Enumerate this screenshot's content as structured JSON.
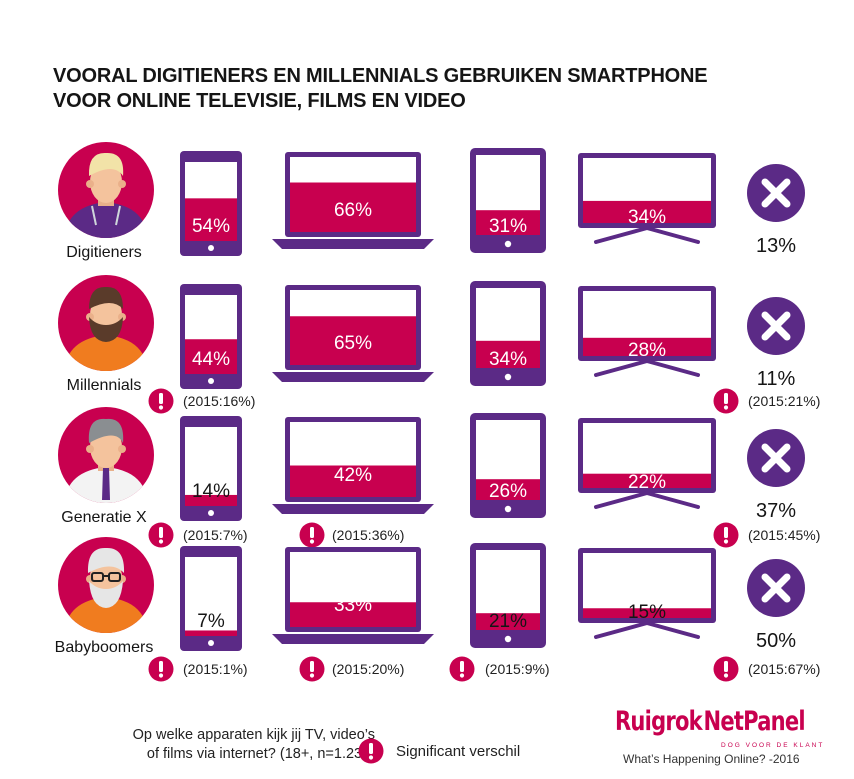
{
  "title": {
    "line1": "VOORAL DIGITIENERS EN MILLENNIALS GEBRUIKEN SMARTPHONE",
    "line2": "VOOR ONLINE TELEVISIE, FILMS EN VIDEO"
  },
  "colors": {
    "accent": "#c8004f",
    "device": "#5b2a86",
    "avatar_bg": "#c8004f"
  },
  "chart_data": {
    "type": "table",
    "columns": [
      "smartphone-icon",
      "laptop-icon",
      "tablet-icon",
      "tv-icon",
      "none-icon"
    ],
    "rows": [
      {
        "group": "Digitieners",
        "values": [
          54,
          66,
          31,
          34,
          13
        ],
        "labels": [
          "54%",
          "66%",
          "31%",
          "34%",
          "13%"
        ],
        "notes": [
          "",
          "",
          "",
          "",
          ""
        ]
      },
      {
        "group": "Millennials",
        "values": [
          44,
          65,
          34,
          28,
          11
        ],
        "labels": [
          "44%",
          "65%",
          "34%",
          "28%",
          "11%"
        ],
        "notes": [
          "(2015:16%)",
          "",
          "",
          "",
          "(2015:21%)"
        ]
      },
      {
        "group": "Generatie X",
        "values": [
          14,
          42,
          26,
          22,
          37
        ],
        "labels": [
          "14%",
          "42%",
          "26%",
          "22%",
          "37%"
        ],
        "notes": [
          "(2015:7%)",
          "(2015:36%)",
          "",
          "",
          "(2015:45%)"
        ]
      },
      {
        "group": "Babyboomers",
        "values": [
          7,
          33,
          21,
          15,
          50
        ],
        "labels": [
          "7%",
          "33%",
          "21%",
          "15%",
          "50%"
        ],
        "notes": [
          "(2015:1%)",
          "(2015:20%)",
          "(2015:9%)",
          "",
          "(2015:67%)"
        ]
      }
    ]
  },
  "footer": {
    "question_line1": "Op welke apparaten kijk jij TV, video’s",
    "question_line2": "of films via internet? (18+, n=1.232)",
    "legend_label": "Significant verschil",
    "brand_left": "Ruigrok",
    "brand_right": "NetPanel",
    "brand_tagline": "DOG VOOR DE KLANT",
    "brand_subtitle": "What’s Happening Online? -2016"
  }
}
